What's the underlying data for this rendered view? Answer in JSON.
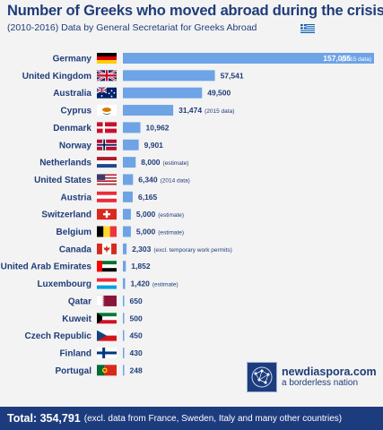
{
  "header": {
    "title": "Number of Greeks who moved abroad during the crisis",
    "subtitle": "(2010-2016) Data by General Secretariat for Greeks Abroad"
  },
  "chart_data": {
    "type": "bar",
    "orientation": "horizontal",
    "title": "Number of Greeks who moved abroad during the crisis",
    "categories": [
      "Germany",
      "United Kingdom",
      "Australia",
      "Cyprus",
      "Denmark",
      "Norway",
      "Netherlands",
      "United States",
      "Austria",
      "Switzerland",
      "Belgium",
      "Canada",
      "United Arab Emirates",
      "Luxembourg",
      "Qatar",
      "Kuweit",
      "Czech Republic",
      "Finland",
      "Portugal"
    ],
    "values": [
      157055,
      57541,
      49500,
      31474,
      10962,
      9901,
      8000,
      6340,
      6165,
      5000,
      5000,
      2303,
      1852,
      1420,
      650,
      500,
      450,
      430,
      248
    ],
    "value_labels": [
      "157,055",
      "57,541",
      "49,500",
      "31,474",
      "10,962",
      "9,901",
      "8,000",
      "6,340",
      "6,165",
      "5,000",
      "5,000",
      "2,303",
      "1,852",
      "1,420",
      "650",
      "500",
      "450",
      "430",
      "248"
    ],
    "notes": [
      "(2015 data)",
      "",
      "",
      "(2015 data)",
      "",
      "",
      "(estimate)",
      "(2014 data)",
      "",
      "(estimate)",
      "(estimate)",
      "(excl. temporary work permits)",
      "",
      "(estimate)",
      "",
      "",
      "",
      "",
      ""
    ],
    "flags": [
      "de",
      "gb",
      "au",
      "cy",
      "dk",
      "no",
      "nl",
      "us",
      "at",
      "ch",
      "be",
      "ca",
      "ae",
      "lu",
      "qa",
      "kw",
      "cz",
      "fi",
      "pt"
    ],
    "bar_color": "#6ea3e6",
    "label_color": "#1f3c7a",
    "xlim": [
      0,
      157055
    ],
    "grid": false,
    "legend": "none"
  },
  "branding": {
    "site": "newdiaspora.com",
    "tagline": "a borderless nation"
  },
  "footer": {
    "total_label": "Total: 354,791",
    "note": "(excl. data from France, Sweden, Italy and many other countries)"
  },
  "colors": {
    "navy": "#1d3c7e",
    "bar": "#6ea3e6",
    "background": "#f3f3f3"
  }
}
